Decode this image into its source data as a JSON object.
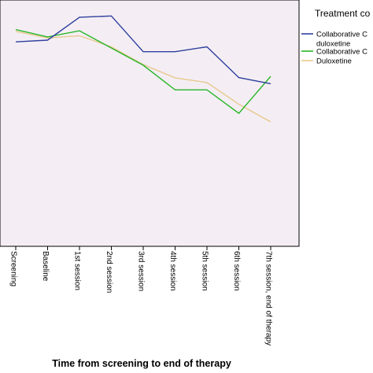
{
  "chart_data": {
    "type": "line",
    "title": "",
    "xlabel": "Time from screening to end of therapy",
    "ylabel": "",
    "categories": [
      "Screening",
      "Baseline",
      "1st session",
      "2nd session",
      "3rd session",
      "4th session",
      "5th session",
      "6th session",
      "7th session, end of therapy"
    ],
    "legend_title": "Treatment co",
    "legend_position": "right",
    "grid": false,
    "ylim": [
      0,
      100
    ],
    "series": [
      {
        "name": "Collaborative C",
        "name_line2": "duloxetine",
        "color": "#2f3f9e",
        "values": [
          83,
          83.7,
          93,
          93.5,
          79,
          79,
          81,
          68.5,
          66
        ]
      },
      {
        "name": "Collaborative C",
        "color": "#2ab62a",
        "values": [
          88,
          85,
          87.5,
          80.5,
          73.5,
          63.5,
          63.5,
          54,
          69
        ]
      },
      {
        "name": "Duloxetine",
        "color": "#e8c88e",
        "values": [
          87.3,
          84.6,
          85.5,
          81,
          73.8,
          68.4,
          66.5,
          57.7,
          50.5
        ]
      }
    ]
  }
}
